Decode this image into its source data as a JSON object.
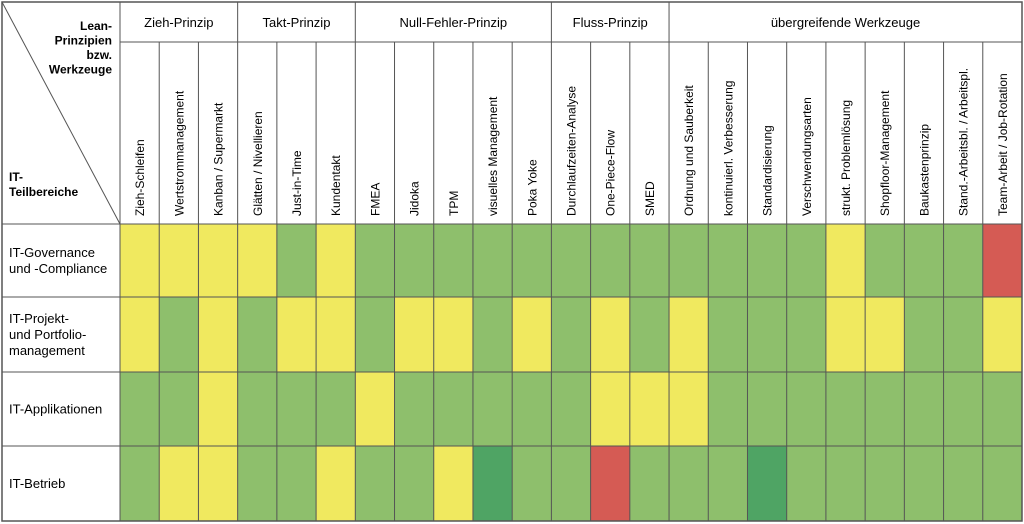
{
  "chart_data": {
    "type": "heatmap",
    "corner": {
      "top_label_lines": [
        "Lean-",
        "Prinzipien",
        "bzw.",
        "Werkzeuge"
      ],
      "bottom_label_lines": [
        "IT-",
        "Teilbereiche"
      ]
    },
    "groups": [
      {
        "label": "Zieh-Prinzip",
        "span": 3
      },
      {
        "label": "Takt-Prinzip",
        "span": 3
      },
      {
        "label": "Null-Fehler-Prinzip",
        "span": 5
      },
      {
        "label": "Fluss-Prinzip",
        "span": 3
      },
      {
        "label": "übergreifende Werkzeuge",
        "span": 9
      }
    ],
    "columns": [
      "Zieh-Schleifen",
      "Wertstrommanagement",
      "Kanban / Supermarkt",
      "Glätten / Nivellieren",
      "Just-in-Time",
      "Kundentakt",
      "FMEA",
      "Jidoka",
      "TPM",
      "visuelles Management",
      "Poka Yoke",
      "Durchlaufzeiten-Analyse",
      "One-Piece-Flow",
      "SMED",
      "Ordnung und Sauberkeit",
      "kontinuierl. Verbesserung",
      "Standardisierung",
      "Verschwendungsarten",
      "strukt. Problemlösung",
      "Shopfloor-Management",
      "Baukastenprinzip",
      "Stand.-Arbeitsbl. / Arbeitspl.",
      "Team-Arbeit / Job-Rotation"
    ],
    "rows": [
      {
        "label_lines": [
          "IT-Governance",
          "und -Compliance"
        ],
        "cells": [
          "Y",
          "Y",
          "Y",
          "Y",
          "G",
          "Y",
          "G",
          "G",
          "G",
          "G",
          "G",
          "G",
          "G",
          "G",
          "G",
          "G",
          "G",
          "G",
          "Y",
          "G",
          "G",
          "G",
          "R"
        ]
      },
      {
        "label_lines": [
          "IT-Projekt-",
          "und Portfolio-",
          "management"
        ],
        "cells": [
          "Y",
          "G",
          "Y",
          "G",
          "Y",
          "Y",
          "G",
          "Y",
          "Y",
          "G",
          "Y",
          "G",
          "Y",
          "G",
          "Y",
          "G",
          "G",
          "G",
          "Y",
          "Y",
          "G",
          "G",
          "Y"
        ]
      },
      {
        "label_lines": [
          "IT-Applikationen"
        ],
        "cells": [
          "G",
          "G",
          "Y",
          "G",
          "G",
          "G",
          "Y",
          "G",
          "G",
          "G",
          "G",
          "G",
          "Y",
          "Y",
          "Y",
          "G",
          "G",
          "G",
          "G",
          "G",
          "G",
          "G",
          "G"
        ]
      },
      {
        "label_lines": [
          "IT-Betrieb"
        ],
        "cells": [
          "G",
          "Y",
          "Y",
          "G",
          "G",
          "Y",
          "G",
          "G",
          "Y",
          "D",
          "G",
          "G",
          "R",
          "G",
          "G",
          "G",
          "D",
          "G",
          "G",
          "G",
          "G",
          "G",
          "G"
        ]
      }
    ],
    "colors": {
      "Y": "#f0e95f",
      "G": "#8ebf6c",
      "D": "#4fa464",
      "R": "#d55b54",
      "header_bg": "#ffffff",
      "grid": "#555555"
    }
  }
}
